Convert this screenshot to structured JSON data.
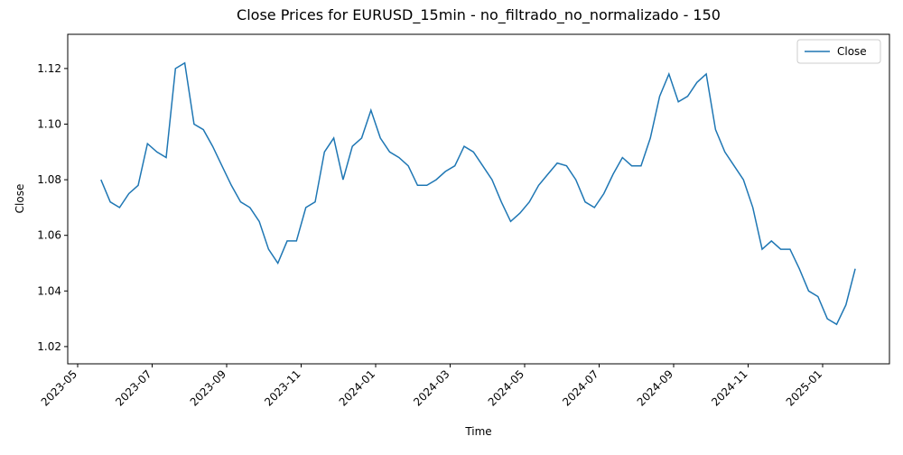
{
  "chart_data": {
    "type": "line",
    "title": "Close Prices for EURUSD_15min - no_filtrado_no_normalizado - 150",
    "x_label": "Time",
    "y_label": "Close",
    "x": [
      "2023-05",
      "2023-05",
      "2023-05",
      "2023-05",
      "2023-06",
      "2023-06",
      "2023-06",
      "2023-06",
      "2023-07",
      "2023-07",
      "2023-07",
      "2023-07",
      "2023-08",
      "2023-08",
      "2023-08",
      "2023-08",
      "2023-09",
      "2023-09",
      "2023-09",
      "2023-09",
      "2023-10",
      "2023-10",
      "2023-10",
      "2023-10",
      "2023-11",
      "2023-11",
      "2023-11",
      "2023-11",
      "2023-12",
      "2023-12",
      "2023-12",
      "2023-12",
      "2024-01",
      "2024-01",
      "2024-01",
      "2024-01",
      "2024-02",
      "2024-02",
      "2024-02",
      "2024-02",
      "2024-03",
      "2024-03",
      "2024-03",
      "2024-03",
      "2024-04",
      "2024-04",
      "2024-04",
      "2024-04",
      "2024-05",
      "2024-05",
      "2024-05",
      "2024-05",
      "2024-06",
      "2024-06",
      "2024-06",
      "2024-06",
      "2024-07",
      "2024-07",
      "2024-07",
      "2024-07",
      "2024-08",
      "2024-08",
      "2024-08",
      "2024-08",
      "2024-09",
      "2024-09",
      "2024-09",
      "2024-09",
      "2024-10",
      "2024-10",
      "2024-10",
      "2024-10",
      "2024-11",
      "2024-11",
      "2024-11",
      "2024-11",
      "2024-12",
      "2024-12",
      "2024-12",
      "2024-12",
      "2025-01",
      "2025-01",
      "2025-01",
      "2025-01"
    ],
    "series": [
      {
        "name": "Close",
        "color": "#1f77b4",
        "values": [
          null,
          null,
          1.08,
          1.072,
          1.07,
          1.075,
          1.078,
          1.093,
          1.09,
          1.088,
          1.12,
          1.122,
          1.1,
          1.098,
          1.092,
          1.085,
          1.078,
          1.072,
          1.07,
          1.065,
          1.055,
          1.05,
          1.058,
          1.058,
          1.07,
          1.072,
          1.09,
          1.095,
          1.08,
          1.092,
          1.095,
          1.105,
          1.095,
          1.09,
          1.088,
          1.085,
          1.078,
          1.078,
          1.08,
          1.083,
          1.085,
          1.092,
          1.09,
          1.085,
          1.08,
          1.072,
          1.065,
          1.068,
          1.072,
          1.078,
          1.082,
          1.086,
          1.085,
          1.08,
          1.072,
          1.07,
          1.075,
          1.082,
          1.088,
          1.085,
          1.085,
          1.095,
          1.11,
          1.118,
          1.108,
          1.11,
          1.115,
          1.118,
          1.098,
          1.09,
          1.085,
          1.08,
          1.07,
          1.055,
          1.058,
          1.055,
          1.055,
          1.048,
          1.04,
          1.038,
          1.03,
          1.028,
          1.035,
          1.048
        ]
      }
    ],
    "xticks": [
      "2023-05",
      "2023-07",
      "2023-09",
      "2023-11",
      "2024-01",
      "2024-03",
      "2024-05",
      "2024-07",
      "2024-09",
      "2024-11",
      "2025-01"
    ],
    "ylim": [
      1.0138,
      1.1323
    ],
    "yticks": [
      1.02,
      1.04,
      1.06,
      1.08,
      {
        "value": 1.1,
        "label": "1.10"
      },
      1.12
    ],
    "legend": "upper right",
    "grid": false
  }
}
